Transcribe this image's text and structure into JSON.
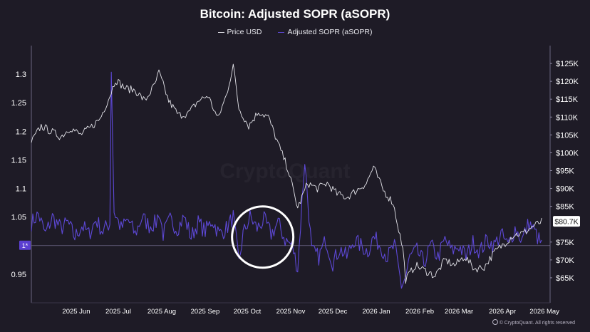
{
  "colors": {
    "background": "#1e1b26",
    "price_line": "#e4e4ea",
    "asopr_line": "#5d48d6",
    "reference_line": "#8a82ad",
    "axis_text": "#ffffff",
    "highlight_circle": "#ffffff",
    "price_badge_bg": "#ffffff",
    "price_badge_text": "#111111"
  },
  "credit": "© CryptoQuant. All rights reserved",
  "chart_data": {
    "type": "line",
    "title": "Bitcoin: Adjusted SOPR (aSOPR)",
    "legend": [
      "Price USD",
      "Adjusted SOPR (aSOPR)"
    ],
    "legend_placement": "top-center",
    "grid": false,
    "x_start": "2025-05-15",
    "x_end": "2026-05-20",
    "xticks": [
      "2025 Jun",
      "2025 Jul",
      "2025 Aug",
      "2025 Sep",
      "2025 Oct",
      "2025 Nov",
      "2025 Dec",
      "2026 Jan",
      "2026 Feb",
      "2026 Mar",
      "2026 Apr",
      "2026 May"
    ],
    "y_left": {
      "label": "",
      "ylim": [
        0.9,
        1.35
      ],
      "ticks": [
        "1.3",
        "1.25",
        "1.2",
        "1.15",
        "1.1",
        "1.05",
        "0.95"
      ]
    },
    "y_right": {
      "label": "",
      "ylim": [
        58000,
        130000
      ],
      "ticks": [
        "$125K",
        "$120K",
        "$115K",
        "$110K",
        "$105K",
        "$100K",
        "$95K",
        "$90K",
        "$85K",
        "$75K",
        "$70K",
        "$65K"
      ]
    },
    "reference_line": {
      "value": 1.0,
      "label": "1*"
    },
    "current_price_label": "$80.7K",
    "series": [
      {
        "name": "Price USD",
        "axis": "right",
        "x": [
          "2025-05-15",
          "2025-05-22",
          "2025-05-29",
          "2025-06-05",
          "2025-06-12",
          "2025-06-19",
          "2025-06-26",
          "2025-07-03",
          "2025-07-10",
          "2025-07-14",
          "2025-07-21",
          "2025-07-28",
          "2025-08-04",
          "2025-08-11",
          "2025-08-14",
          "2025-08-21",
          "2025-08-28",
          "2025-09-04",
          "2025-09-11",
          "2025-09-18",
          "2025-09-25",
          "2025-10-01",
          "2025-10-06",
          "2025-10-10",
          "2025-10-17",
          "2025-10-24",
          "2025-10-31",
          "2025-11-07",
          "2025-11-14",
          "2025-11-21",
          "2025-11-28",
          "2025-12-05",
          "2025-12-12",
          "2025-12-19",
          "2025-12-26",
          "2026-01-02",
          "2026-01-09",
          "2026-01-14",
          "2026-01-21",
          "2026-01-28",
          "2026-02-04",
          "2026-02-06",
          "2026-02-13",
          "2026-02-20",
          "2026-02-27",
          "2026-03-06",
          "2026-03-13",
          "2026-03-20",
          "2026-03-27",
          "2026-04-03",
          "2026-04-10",
          "2026-04-17",
          "2026-04-24",
          "2026-05-01",
          "2026-05-08",
          "2026-05-14"
        ],
        "y": [
          103000,
          107500,
          106000,
          104500,
          107000,
          105000,
          107000,
          109500,
          116000,
          120500,
          118000,
          117500,
          114500,
          119000,
          122500,
          114500,
          110500,
          111000,
          114500,
          116000,
          109500,
          116000,
          124500,
          112500,
          107500,
          111500,
          110000,
          102500,
          95500,
          84500,
          91500,
          90000,
          91500,
          88500,
          87500,
          89500,
          91500,
          96000,
          89500,
          86000,
          73000,
          64500,
          68500,
          67000,
          65500,
          70000,
          68500,
          71000,
          67500,
          68000,
          72000,
          74500,
          77000,
          77500,
          79500,
          80700
        ]
      },
      {
        "name": "Adjusted SOPR (aSOPR)",
        "axis": "left",
        "x": [
          "2025-05-15",
          "2025-05-20",
          "2025-05-25",
          "2025-05-30",
          "2025-06-05",
          "2025-06-10",
          "2025-06-15",
          "2025-06-20",
          "2025-06-25",
          "2025-06-30",
          "2025-07-05",
          "2025-07-10",
          "2025-07-11",
          "2025-07-13",
          "2025-07-18",
          "2025-07-23",
          "2025-07-28",
          "2025-08-02",
          "2025-08-07",
          "2025-08-12",
          "2025-08-14",
          "2025-08-17",
          "2025-08-22",
          "2025-08-27",
          "2025-09-01",
          "2025-09-06",
          "2025-09-11",
          "2025-09-16",
          "2025-09-21",
          "2025-09-26",
          "2025-10-01",
          "2025-10-06",
          "2025-10-10",
          "2025-10-13",
          "2025-10-18",
          "2025-10-23",
          "2025-10-28",
          "2025-11-02",
          "2025-11-07",
          "2025-11-12",
          "2025-11-17",
          "2025-11-21",
          "2025-11-26",
          "2025-12-01",
          "2025-12-06",
          "2025-12-11",
          "2025-12-16",
          "2025-12-21",
          "2025-12-26",
          "2025-12-31",
          "2026-01-05",
          "2026-01-10",
          "2026-01-14",
          "2026-01-19",
          "2026-01-24",
          "2026-01-29",
          "2026-02-03",
          "2026-02-06",
          "2026-02-09",
          "2026-02-14",
          "2026-02-19",
          "2026-02-24",
          "2026-03-01",
          "2026-03-06",
          "2026-03-11",
          "2026-03-16",
          "2026-03-21",
          "2026-03-26",
          "2026-03-31",
          "2026-04-05",
          "2026-04-10",
          "2026-04-15",
          "2026-04-20",
          "2026-04-25",
          "2026-04-30",
          "2026-05-05",
          "2026-05-10",
          "2026-05-14"
        ],
        "y": [
          1.04,
          1.055,
          1.02,
          1.05,
          1.03,
          1.04,
          1.015,
          1.035,
          1.02,
          1.045,
          1.025,
          1.04,
          1.31,
          1.06,
          1.03,
          1.045,
          1.02,
          1.05,
          1.035,
          1.04,
          1.06,
          1.02,
          1.045,
          1.03,
          1.05,
          1.015,
          1.04,
          1.025,
          1.045,
          1.02,
          1.03,
          1.05,
          0.97,
          1.02,
          1.05,
          1.03,
          1.045,
          1.02,
          1.04,
          1.01,
          1.0,
          0.96,
          1.15,
          0.99,
          0.98,
          1.01,
          0.97,
          0.995,
          0.98,
          1.01,
          1.0,
          0.99,
          1.015,
          1.0,
          0.98,
          1.0,
          0.93,
          0.945,
          0.98,
          0.99,
          0.97,
          1.0,
          0.98,
          1.01,
          0.99,
          1.0,
          0.98,
          1.005,
          0.99,
          1.01,
          1.0,
          1.02,
          1.0,
          1.03,
          1.01,
          1.04,
          1.02,
          1.0
        ]
      }
    ],
    "highlight": {
      "shape": "circle",
      "from": "2025-10-10",
      "to": "2025-11-13",
      "y_range": [
        0.985,
        1.045
      ]
    }
  }
}
